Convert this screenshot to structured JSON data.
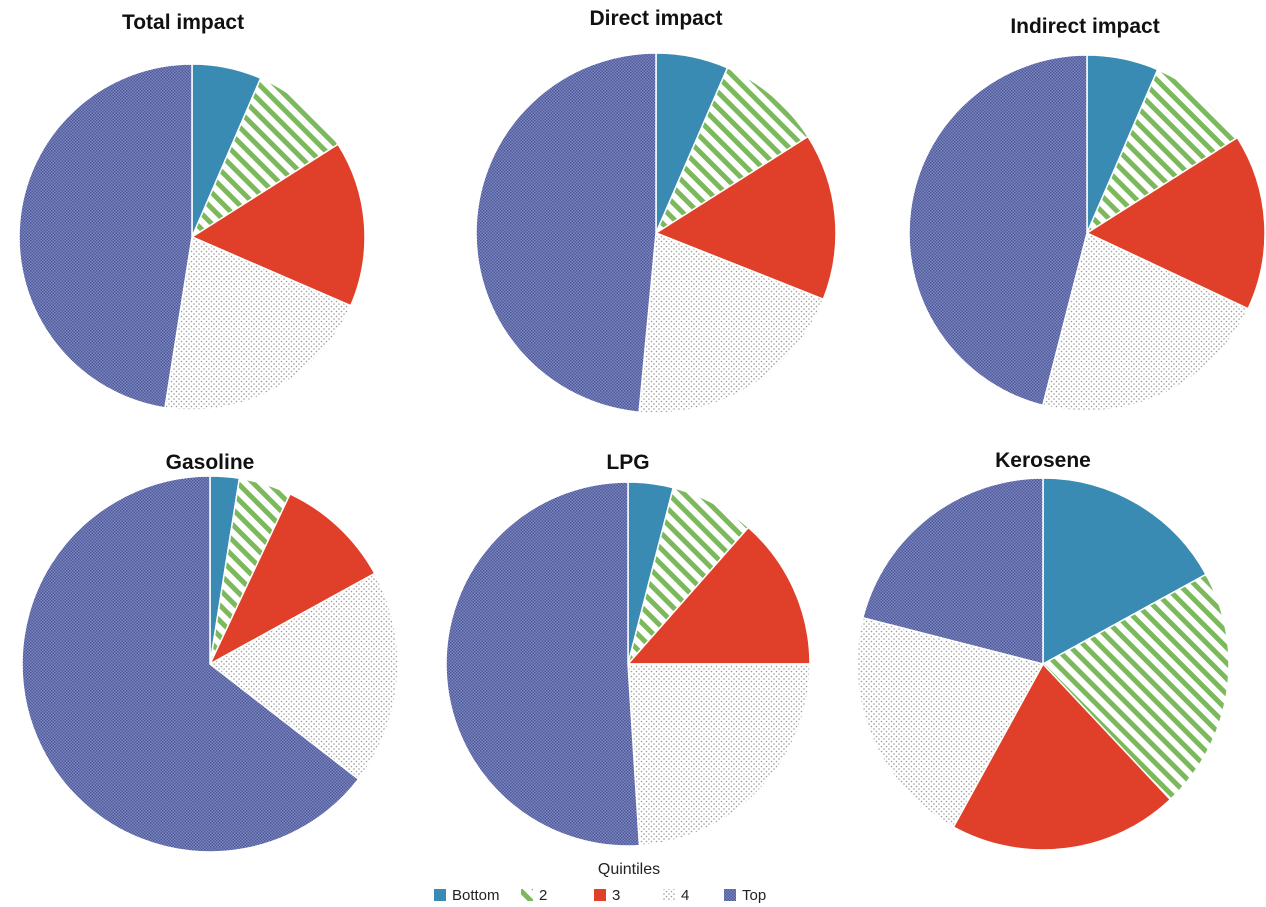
{
  "chart_data": [
    {
      "type": "pie",
      "title": "Total impact",
      "categories": [
        "Bottom",
        "2",
        "3",
        "4",
        "Top"
      ],
      "values": [
        6.5,
        9.5,
        15.5,
        21,
        47.5
      ]
    },
    {
      "type": "pie",
      "title": "Direct impact",
      "categories": [
        "Bottom",
        "2",
        "3",
        "4",
        "Top"
      ],
      "values": [
        6.5,
        9.5,
        15,
        20.5,
        48.5
      ]
    },
    {
      "type": "pie",
      "title": "Indirect impact",
      "categories": [
        "Bottom",
        "2",
        "3",
        "4",
        "Top"
      ],
      "values": [
        6.5,
        9.5,
        16,
        22,
        46
      ]
    },
    {
      "type": "pie",
      "title": "Gasoline",
      "categories": [
        "Bottom",
        "2",
        "3",
        "4",
        "Top"
      ],
      "values": [
        2.5,
        4.5,
        10,
        18.5,
        64.5
      ]
    },
    {
      "type": "pie",
      "title": "LPG",
      "categories": [
        "Bottom",
        "2",
        "3",
        "4",
        "Top"
      ],
      "values": [
        4,
        7.5,
        13.5,
        24,
        51
      ]
    },
    {
      "type": "pie",
      "title": "Kerosene",
      "categories": [
        "Bottom",
        "2",
        "3",
        "4",
        "Top"
      ],
      "values": [
        17,
        21,
        20,
        21,
        21
      ]
    }
  ],
  "legend": {
    "title": "Quintiles",
    "placement": "bottom-center",
    "items": [
      {
        "label": "Bottom",
        "color": "#3A8BB3",
        "pattern": "solid"
      },
      {
        "label": "2",
        "color": "#7CB85C",
        "pattern": "stripes"
      },
      {
        "label": "3",
        "color": "#E0402A",
        "pattern": "solid"
      },
      {
        "label": "4",
        "color": "#B8B8B8",
        "pattern": "dots"
      },
      {
        "label": "Top",
        "color": "#5A66A8",
        "pattern": "checker"
      }
    ]
  }
}
